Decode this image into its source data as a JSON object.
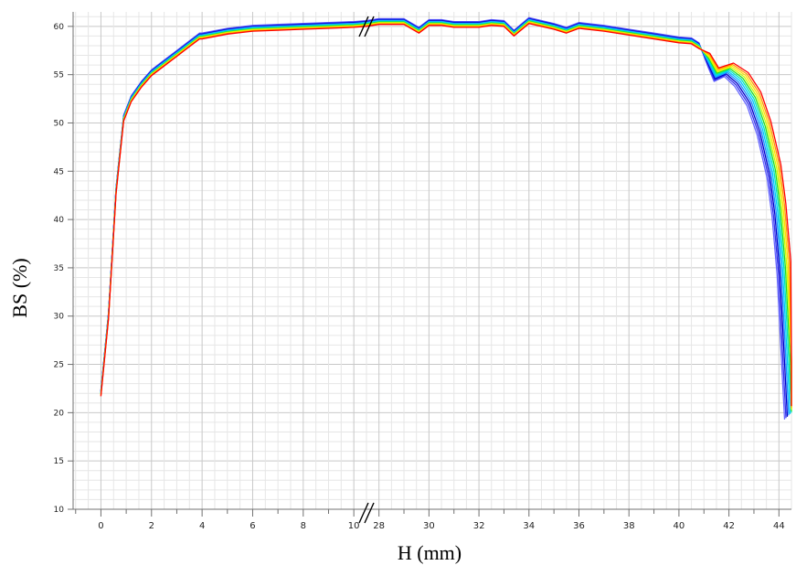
{
  "chart_data": {
    "type": "line",
    "title": "",
    "xlabel": "H (mm)",
    "ylabel": "BS (%)",
    "ylim": [
      10,
      61.5
    ],
    "y_ticks": [
      10,
      15,
      20,
      25,
      30,
      35,
      40,
      45,
      50,
      55,
      60
    ],
    "x_axis_break": {
      "from": 10.5,
      "to": 27.5
    },
    "x_segments": [
      {
        "range": [
          -1.1,
          10.5
        ],
        "tick_labels": [
          0,
          2,
          4,
          6,
          8,
          10
        ]
      },
      {
        "range": [
          27.5,
          44.5
        ],
        "tick_labels": [
          28,
          30,
          32,
          34,
          36,
          38,
          40,
          42,
          44
        ]
      }
    ],
    "grid": true,
    "legend": "none",
    "series_colors": [
      "#6666ff",
      "#3333ee",
      "#0000cc",
      "#1e90ff",
      "#00c8ff",
      "#00e5c0",
      "#22dd22",
      "#c8ff00",
      "#ffe000",
      "#ff9900",
      "#ff0000"
    ],
    "series": [
      {
        "x": [
          0,
          0.3,
          0.6,
          0.9,
          1.2,
          1.6,
          2.0,
          2.5,
          3.0,
          3.5,
          3.9,
          4.0,
          5,
          6,
          7,
          8,
          9,
          10,
          10.5,
          27.5,
          28,
          29,
          29.6,
          30,
          30.5,
          31,
          32,
          32.5,
          33,
          33.4,
          34,
          35,
          35.5,
          36,
          37,
          38,
          39,
          40,
          40.5,
          40.8,
          41.2,
          41.5,
          41.8,
          42,
          42.5,
          43,
          43.4,
          43.8,
          44,
          44.2,
          44.4,
          44.5
        ],
        "y": [
          22,
          30,
          43,
          50.5,
          52.5,
          54,
          55.2,
          56.2,
          57.2,
          58.2,
          59.0,
          59.0,
          59.5,
          59.8,
          59.9,
          60.0,
          60.1,
          60.2,
          60.3,
          60.3,
          60.5,
          60.5,
          59.6,
          60.4,
          60.4,
          60.2,
          60.2,
          60.4,
          60.3,
          59.3,
          60.6,
          60.0,
          59.6,
          60.1,
          59.8,
          59.4,
          59.0,
          58.6,
          58.5,
          58.0,
          56.5,
          55.0,
          55.3,
          55.5,
          54.5,
          52.5,
          49.5,
          45.0,
          41.0,
          35.0,
          25.0,
          20.0
        ]
      }
    ]
  }
}
